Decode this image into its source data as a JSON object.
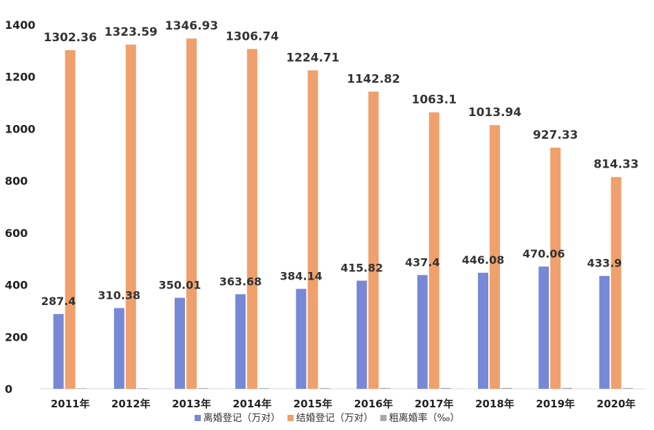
{
  "colors": {
    "divorce": "#7788D6",
    "marriage": "#F0A06C",
    "rate": "#A8A8A8",
    "axis_text": "#222222",
    "label_text": "#333333",
    "axis_line": "#D9D9D9"
  },
  "chart_data": {
    "type": "bar",
    "categories": [
      "2011年",
      "2012年",
      "2013年",
      "2014年",
      "2015年",
      "2016年",
      "2017年",
      "2018年",
      "2019年",
      "2020年"
    ],
    "series": [
      {
        "name": "离婚登记（万对）",
        "values": [
          287.4,
          310.38,
          350.01,
          363.68,
          384.14,
          415.82,
          437.4,
          446.08,
          470.06,
          433.9
        ],
        "labels": [
          "287.4",
          "310.38",
          "350.01",
          "363.68",
          "384.14",
          "415.82",
          "437.4",
          "446.08",
          "470.06",
          "433.9"
        ]
      },
      {
        "name": "结婚登记（万对）",
        "values": [
          1302.36,
          1323.59,
          1346.93,
          1306.74,
          1224.71,
          1142.82,
          1063.1,
          1013.94,
          927.33,
          814.33
        ],
        "labels": [
          "1302.36",
          "1323.59",
          "1346.93",
          "1306.74",
          "1224.71",
          "1142.82",
          "1063.1",
          "1013.94",
          "927.33",
          "814.33"
        ]
      },
      {
        "name": "粗离婚率（‰）",
        "values": [
          2.13,
          2.29,
          2.58,
          2.67,
          2.79,
          3.02,
          3.15,
          3.2,
          3.36,
          3.1
        ]
      }
    ],
    "yticks": [
      "0",
      "200",
      "400",
      "600",
      "800",
      "1000",
      "1200",
      "1400"
    ],
    "ylim": [
      0,
      1400
    ],
    "title": "",
    "xlabel": "",
    "ylabel": "",
    "grid": false,
    "legend_position": "bottom"
  }
}
